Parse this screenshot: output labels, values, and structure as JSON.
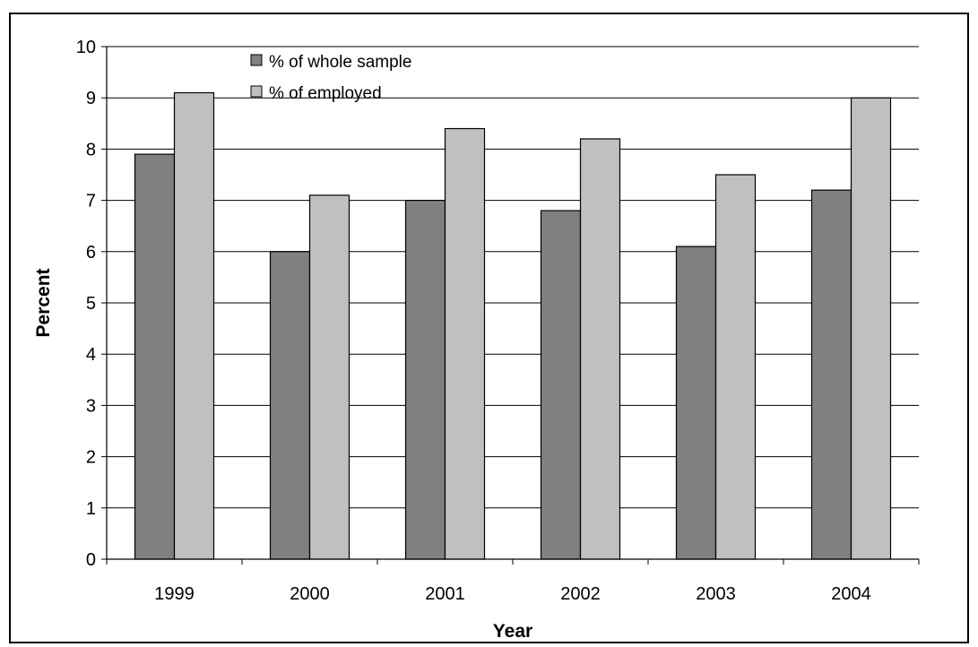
{
  "chart_data": {
    "type": "bar",
    "categories": [
      "1999",
      "2000",
      "2001",
      "2002",
      "2003",
      "2004"
    ],
    "series": [
      {
        "name": "% of whole sample",
        "values": [
          7.9,
          6.0,
          7.0,
          6.8,
          6.1,
          7.2
        ],
        "color": "#808080"
      },
      {
        "name": "% of employed",
        "values": [
          9.1,
          7.1,
          8.4,
          8.2,
          7.5,
          9.0
        ],
        "color": "#c0c0c0"
      }
    ],
    "title": "",
    "xlabel": "Year",
    "ylabel": "Percent",
    "ylim": [
      0,
      10
    ],
    "yticks": [
      "0",
      "1",
      "2",
      "3",
      "4",
      "5",
      "6",
      "7",
      "8",
      "9",
      "10"
    ],
    "grid": true,
    "legend": "top-left"
  }
}
